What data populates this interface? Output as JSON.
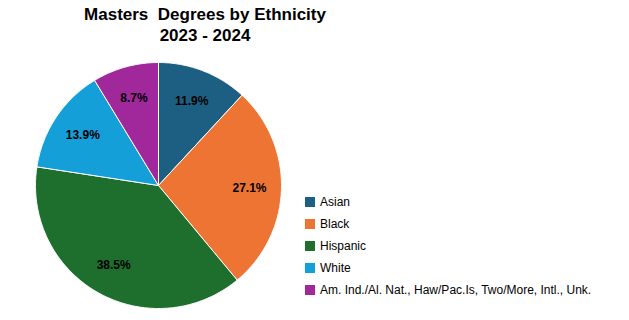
{
  "chart_data": {
    "type": "pie",
    "title": "Masters  Degrees by Ethnicity",
    "subtitle": "2023 - 2024",
    "categories": [
      "Asian",
      "Black",
      "Hispanic",
      "White",
      "Am. Ind./Al. Nat., Haw/Pac.Is, Two/More, Intl., Unk."
    ],
    "values": [
      11.9,
      27.1,
      38.5,
      13.9,
      8.7
    ],
    "value_labels": [
      "11.9%",
      "27.1%",
      "38.5%",
      "13.9%",
      "8.7%"
    ],
    "colors": [
      "#1d5f82",
      "#ed7433",
      "#1e6e2e",
      "#149fd8",
      "#a0289a"
    ],
    "data_labels": true,
    "legend": "right"
  }
}
